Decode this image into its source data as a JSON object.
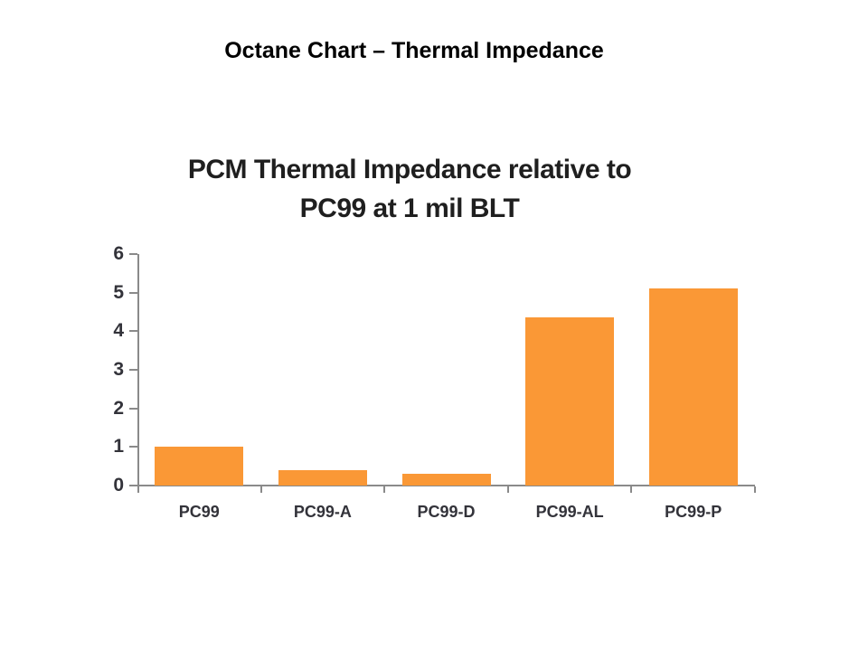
{
  "page": {
    "title": "Octane Chart – Thermal Impedance"
  },
  "chart_data": {
    "type": "bar",
    "title": "PCM Thermal Impedance relative to PC99 at 1 mil BLT",
    "title_lines": [
      "PCM Thermal Impedance relative to",
      "PC99 at 1 mil BLT"
    ],
    "categories": [
      "PC99",
      "PC99-A",
      "PC99-D",
      "PC99-AL",
      "PC99-P"
    ],
    "values": [
      1.0,
      0.4,
      0.3,
      4.35,
      5.1
    ],
    "xlabel": "",
    "ylabel": "",
    "ylim": [
      0,
      6
    ],
    "yticks": [
      0,
      1,
      2,
      3,
      4,
      5,
      6
    ],
    "grid": false,
    "legend": "none",
    "bar_color": "#FA9836",
    "axis_color": "#8A8A8A",
    "tick_label_color": "#33333a",
    "title_color": "#1f1f1f"
  }
}
